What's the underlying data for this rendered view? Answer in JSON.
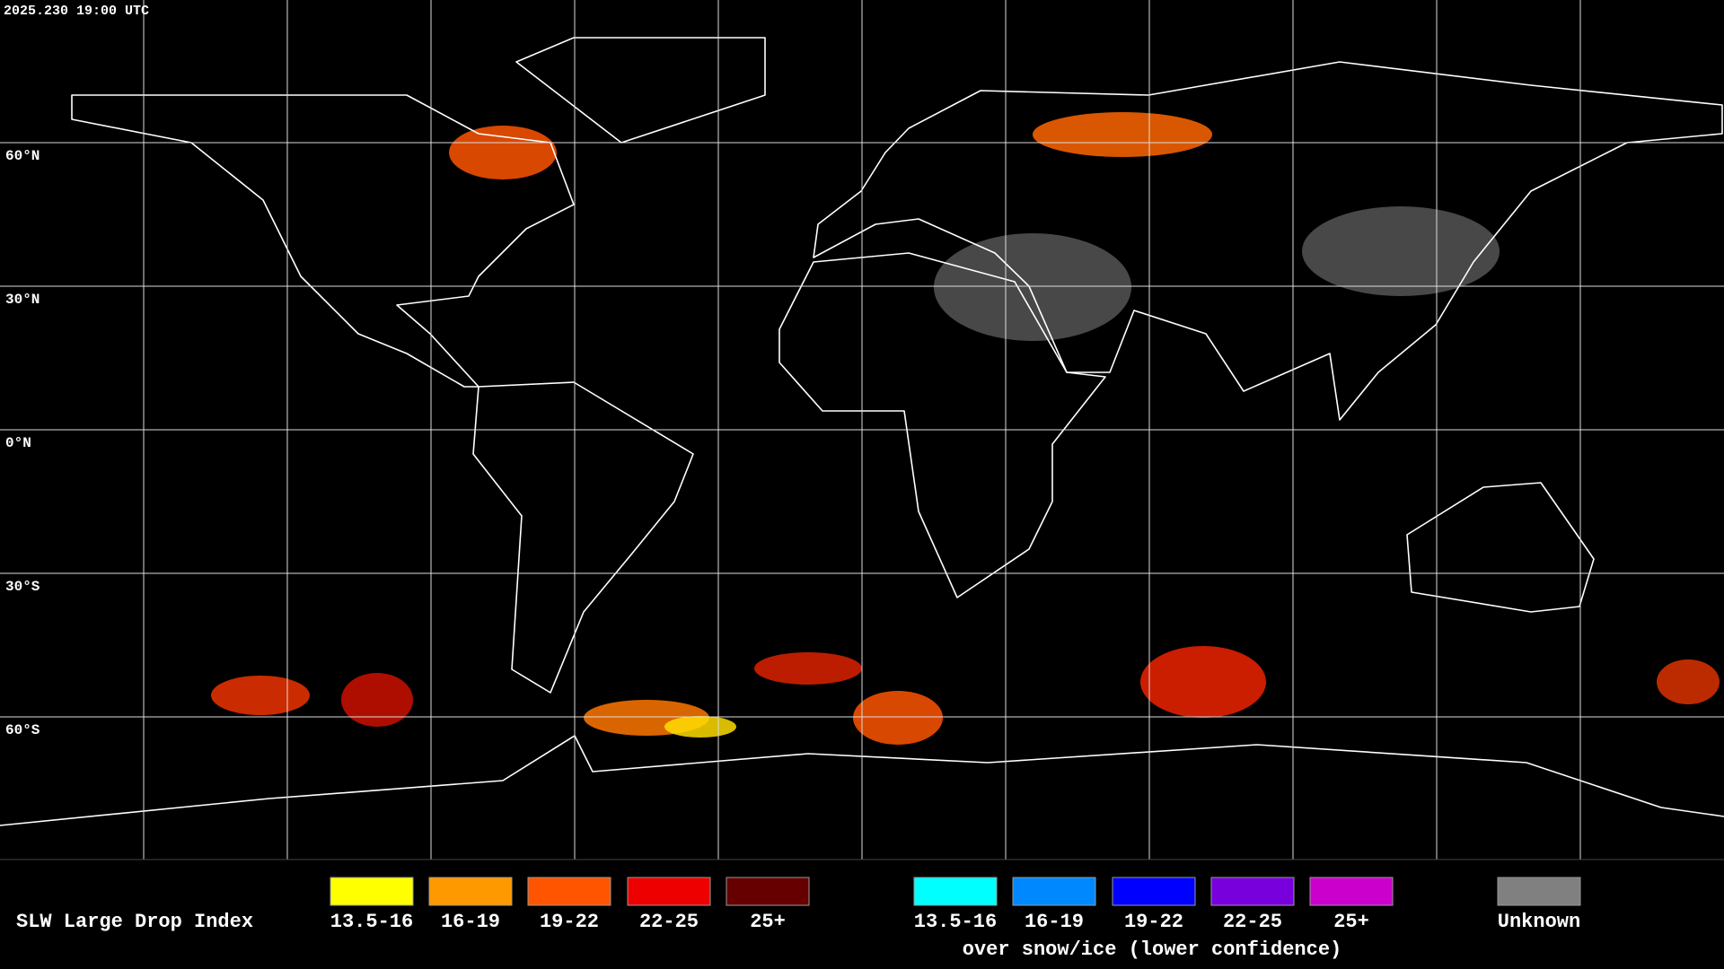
{
  "header": {
    "timestamp": "2025.230 19:00 UTC"
  },
  "map": {
    "latitude_labels": [
      "60°N",
      "30°N",
      "0°N",
      "30°S",
      "60°S"
    ]
  },
  "legend": {
    "title": "SLW Large Drop Index",
    "groups": [
      {
        "items": [
          {
            "label": "13.5-16",
            "color": "#ffff00"
          },
          {
            "label": "16-19",
            "color": "#ff9900"
          },
          {
            "label": "19-22",
            "color": "#ff5500"
          },
          {
            "label": "22-25",
            "color": "#ee0000"
          },
          {
            "label": "25+",
            "color": "#660000"
          }
        ]
      },
      {
        "items": [
          {
            "label": "13.5-16",
            "color": "#00ffff"
          },
          {
            "label": "16-19",
            "color": "#0088ff"
          },
          {
            "label": "19-22",
            "color": "#0000ff"
          },
          {
            "label": "22-25",
            "color": "#7700dd"
          },
          {
            "label": "25+",
            "color": "#cc00cc"
          }
        ],
        "note": "over snow/ice (lower confidence)"
      }
    ],
    "unknown": {
      "label": "Unknown",
      "color": "#808080"
    }
  }
}
